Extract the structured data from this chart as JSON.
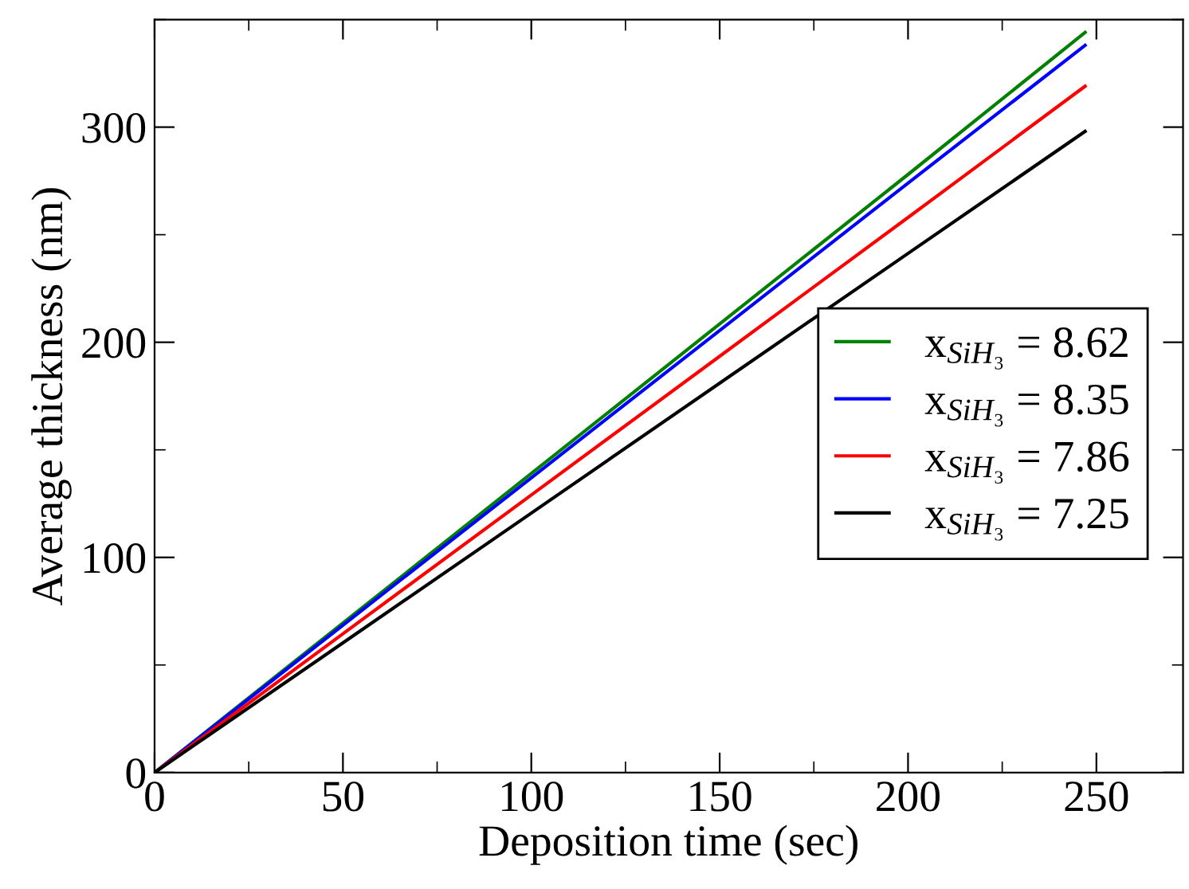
{
  "chart_data": {
    "type": "line",
    "xlabel": "Deposition time (sec)",
    "ylabel": "Average thickness (nm)",
    "x": [
      0,
      50,
      100,
      150,
      200,
      247
    ],
    "series": [
      {
        "name": "x$_{SiH₃}$ = 8.62",
        "color": "#008000",
        "values": [
          0,
          69.5,
          139,
          208.5,
          278,
          344
        ]
      },
      {
        "name": "x$_{SiH₃}$ = 8.35",
        "color": "#0000ff",
        "values": [
          0,
          68.5,
          137,
          205.5,
          274,
          338
        ]
      },
      {
        "name": "x$_{SiH₃}$ = 7.86",
        "color": "#ff0000",
        "values": [
          0,
          64.5,
          129,
          193.5,
          258,
          319
        ]
      },
      {
        "name": "x$_{SiH₃}$ = 7.25",
        "color": "#000000",
        "values": [
          0,
          60.3,
          120.6,
          181,
          241.3,
          298
        ]
      }
    ],
    "xlim": [
      0,
      273
    ],
    "ylim": [
      0,
      350
    ],
    "xticks": [
      0,
      50,
      100,
      150,
      200,
      250
    ],
    "yticks": [
      0,
      100,
      200,
      300
    ],
    "grid": false,
    "legend": "right",
    "marker": "none",
    "line_style": "solid"
  }
}
